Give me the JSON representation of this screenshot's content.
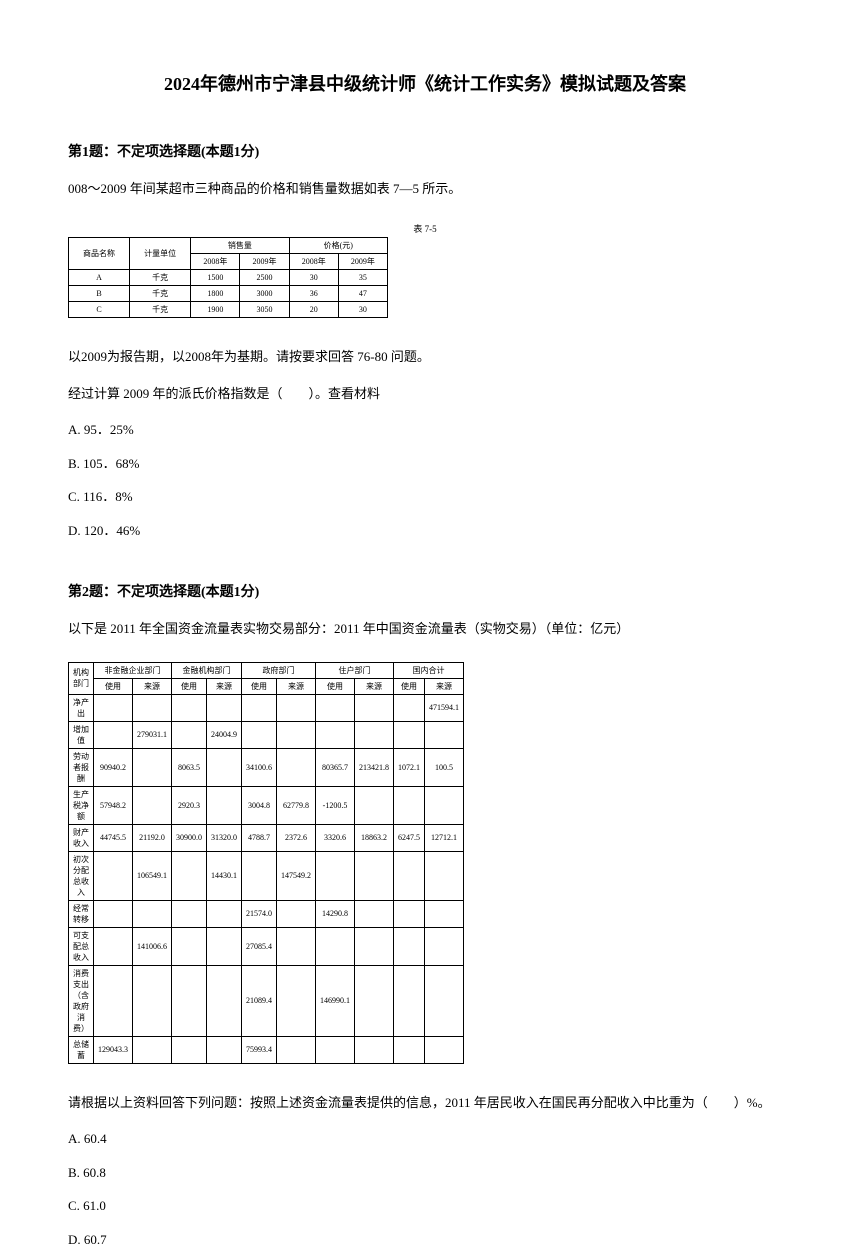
{
  "title": "2024年德州市宁津县中级统计师《统计工作实务》模拟试题及答案",
  "q1": {
    "header": "第1题：不定项选择题(本题1分)",
    "intro": "008～2009 年间某超市三种商品的价格和销售量数据如表 7—5 所示。",
    "table_caption": "表 7-5",
    "table_headers": {
      "col1": "商品名称",
      "col2": "计量单位",
      "col3_group": "销售量",
      "col3a": "2008年",
      "col3b": "2009年",
      "col4_group": "价格(元)",
      "col4a": "2008年",
      "col4b": "2009年"
    },
    "table_rows": [
      [
        "A",
        "千克",
        "1500",
        "2500",
        "30",
        "35"
      ],
      [
        "B",
        "千克",
        "1800",
        "3000",
        "36",
        "47"
      ],
      [
        "C",
        "千克",
        "1900",
        "3050",
        "20",
        "30"
      ]
    ],
    "followup1": "以2009为报告期，以2008年为基期。请按要求回答 76-80 问题。",
    "followup2": "经过计算 2009 年的派氏价格指数是（　　）。查看材料",
    "options": {
      "a": "A. 95．25%",
      "b": "B. 105．68%",
      "c": "C. 116．8%",
      "d": "D. 120．46%"
    }
  },
  "q2": {
    "header": "第2题：不定项选择题(本题1分)",
    "intro": "以下是 2011 年全国资金流量表实物交易部分：2011 年中国资金流量表（实物交易）（单位：亿元）",
    "table_headers": {
      "r1c1": "机构部门",
      "r1c2": "非金融企业部门",
      "r1c3": "金融机构部门",
      "r1c4": "政府部门",
      "r1c5": "住户部门",
      "r1c6": "国内合计",
      "r2_use": "使用",
      "r2_src": "来源"
    },
    "table_rows": [
      [
        "净产出",
        "",
        "",
        "",
        "",
        "",
        "",
        "",
        "",
        "",
        "471594.1"
      ],
      [
        "增加值",
        "",
        "279031.1",
        "",
        "24004.9",
        "",
        "",
        "",
        "",
        "",
        ""
      ],
      [
        "劳动者报酬",
        "90940.2",
        "",
        "8063.5",
        "",
        "34100.6",
        "",
        "80365.7",
        "213421.8",
        "1072.1",
        "100.5"
      ],
      [
        "生产税净额",
        "57948.2",
        "",
        "2920.3",
        "",
        "3004.8",
        "62779.8",
        "-1200.5",
        "",
        "",
        ""
      ],
      [
        "财产收入",
        "44745.5",
        "21192.0",
        "30900.0",
        "31320.0",
        "4788.7",
        "2372.6",
        "3320.6",
        "18863.2",
        "6247.5",
        "12712.1"
      ],
      [
        "初次分配总收入",
        "",
        "106549.1",
        "",
        "14430.1",
        "",
        "147549.2",
        "",
        "",
        "",
        ""
      ],
      [
        "经常转移",
        "",
        "",
        "",
        "",
        "21574.0",
        "",
        "14290.8",
        "",
        "",
        ""
      ],
      [
        "可支配总收入",
        "",
        "141006.6",
        "",
        "",
        "27085.4",
        "",
        "",
        "",
        "",
        ""
      ],
      [
        "消费支出（含政府消费）",
        "",
        "",
        "",
        "",
        "21089.4",
        "",
        "146990.1",
        "",
        "",
        ""
      ],
      [
        "总储蓄",
        "129043.3",
        "",
        "",
        "",
        "75993.4",
        "",
        "",
        "",
        "",
        ""
      ]
    ],
    "followup": "请根据以上资料回答下列问题：按照上述资金流量表提供的信息，2011 年居民收入在国民再分配收入中比重为（　　）%。",
    "options": {
      "a": "A. 60.4",
      "b": "B. 60.8",
      "c": "C. 61.0",
      "d": "D. 60.7"
    }
  }
}
